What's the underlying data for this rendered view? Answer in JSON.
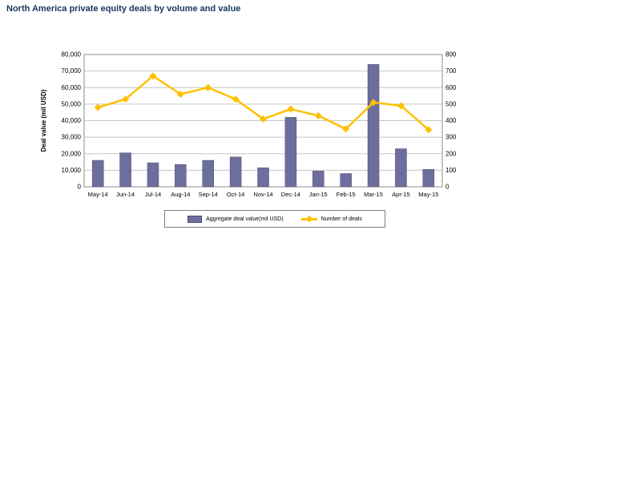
{
  "page": {
    "title": "North America private equity deals by volume and value"
  },
  "chart_data": {
    "type": "bar",
    "subtype": "combo-bar-line",
    "categories": [
      "May-14",
      "Jun-14",
      "Jul-14",
      "Aug-14",
      "Sep-14",
      "Oct-14",
      "Nov-14",
      "Dec-14",
      "Jan-15",
      "Feb-15",
      "Mar-15",
      "Apr-15",
      "May-15"
    ],
    "series": [
      {
        "name": "Aggregate deal value(mil USD)",
        "type": "bar",
        "axis": "left",
        "color": "#6E6E9E",
        "values": [
          16000,
          20500,
          14500,
          13500,
          16000,
          18000,
          11500,
          42000,
          9500,
          8000,
          74000,
          23000,
          10500
        ]
      },
      {
        "name": "Number of deals",
        "type": "line",
        "axis": "right",
        "color": "#FFC000",
        "values": [
          480,
          530,
          670,
          560,
          600,
          530,
          410,
          470,
          430,
          350,
          510,
          490,
          345
        ]
      }
    ],
    "left_axis": {
      "label": "Deal value (mil USD)",
      "min": 0,
      "max": 80000,
      "step": 10000
    },
    "right_axis": {
      "label": "",
      "min": 0,
      "max": 800,
      "step": 100
    },
    "grid": "horizontal",
    "legend_position": "bottom"
  }
}
